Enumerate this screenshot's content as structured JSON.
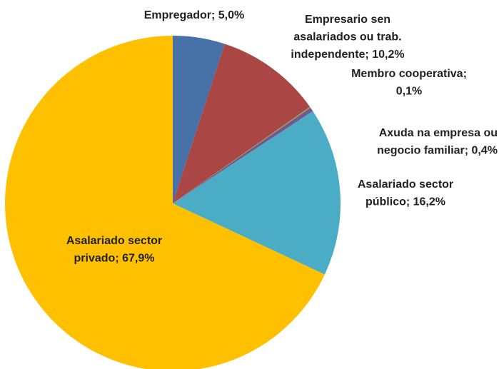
{
  "chart_data": {
    "type": "pie",
    "values": [
      5.0,
      10.2,
      0.1,
      0.4,
      16.2,
      67.9
    ],
    "value_labels": [
      [
        "Empregador; 5,0%"
      ],
      [
        "Empresario sen",
        "asalariados ou trab.",
        "independente; 10,2%"
      ],
      [
        "Membro cooperativa;",
        "0,1%"
      ],
      [
        "Axuda na empresa ou",
        "negocio familiar; 0,4%"
      ],
      [
        "Asalariado sector",
        "público; 16,2%"
      ],
      [
        "Asalariado sector",
        "privado; 67,9%"
      ]
    ],
    "colors": [
      "#4672a8",
      "#aa4643",
      "#89a54e",
      "#71588f",
      "#4bacc6",
      "#ffc000"
    ]
  }
}
